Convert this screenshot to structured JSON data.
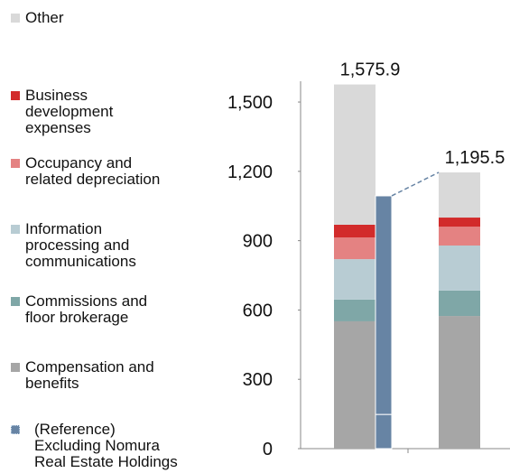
{
  "chart_data": {
    "type": "stacked_bar",
    "categories": [
      null,
      null
    ],
    "series": [
      {
        "name": "Compensation and\nbenefits",
        "color": "#a6a6a6",
        "values": [
          551,
          574
        ]
      },
      {
        "name": "Commissions and\nfloor brokerage",
        "color": "#7fa7a7",
        "values": [
          94,
          110
        ]
      },
      {
        "name": "Information\nprocessing and\ncommunications",
        "color": "#b8ccd3",
        "values": [
          175,
          195
        ]
      },
      {
        "name": "Occupancy and\nrelated depreciation",
        "color": "#e48282",
        "values": [
          94,
          82
        ]
      },
      {
        "name": "Business\ndevelopment\nexpenses",
        "color": "#d22b2b",
        "values": [
          55,
          39
        ]
      },
      {
        "name": "Other",
        "color": "#d9d9d9",
        "values": [
          607,
          195.5
        ]
      }
    ],
    "totals": [
      {
        "value": 1575.9,
        "label": "1,575.9"
      },
      {
        "value": 1195.5,
        "label": "1,195.5"
      }
    ],
    "reference": {
      "name": "(Reference)\nExcluding Nomura\nReal Estate Holdings",
      "color": "#6784a4",
      "values": [
        148,
        946
      ]
    },
    "ylim": [
      0,
      1590
    ],
    "yticks": [
      0,
      300,
      600,
      900,
      {
        "value": 1200,
        "label": "1,200"
      },
      {
        "value": 1500,
        "label": "1,500"
      }
    ]
  }
}
